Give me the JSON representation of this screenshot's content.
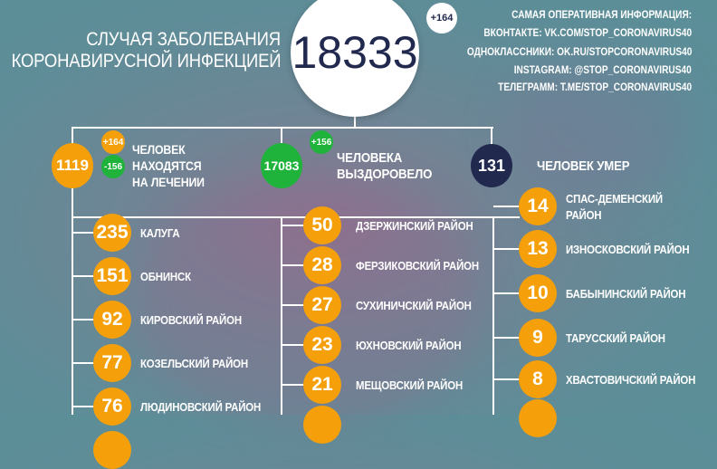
{
  "header": {
    "title_line1": "СЛУЧАЯ ЗАБОЛЕВАНИЯ",
    "title_line2": "КОРОНАВИРУСНОЙ ИНФЕКЦИЕЙ",
    "total": "18333",
    "total_delta": "+164"
  },
  "info": [
    "САМАЯ ОПЕРАТИВНАЯ ИНФОРМАЦИЯ:",
    "ВКОНТАКТЕ: VK.COM/STOP_CORONAVIRUS40",
    "ОДНОКЛАССНИКИ: OK.RU/STOPCORONAVIRUS40",
    "INSTAGRAM: @STOP_CORONAVIRUS40",
    "ТЕЛЕГРАММ: T.ME/STOP_CORONAVIRUS40"
  ],
  "stats": {
    "treatment": {
      "value": "1119",
      "plus": "+164",
      "minus": "-156",
      "label1": "ЧЕЛОВЕК",
      "label2": "НАХОДЯТСЯ",
      "label3": "НА ЛЕЧЕНИИ"
    },
    "recovered": {
      "value": "17083",
      "plus": "+156",
      "label1": "ЧЕЛОВЕКА",
      "label2": "ВЫЗДОРОВЕЛО"
    },
    "died": {
      "value": "131",
      "label": "ЧЕЛОВЕК УМЕР"
    }
  },
  "colors": {
    "active": "#f5a00a",
    "recovered": "#1fb33c",
    "died": "#22294f"
  },
  "regions": {
    "col1": [
      {
        "value": "235",
        "name": "КАЛУГА"
      },
      {
        "value": "151",
        "name": "ОБНИНСК"
      },
      {
        "value": "92",
        "name": "КИРОВСКИЙ РАЙОН"
      },
      {
        "value": "77",
        "name": "КОЗЕЛЬСКИЙ РАЙОН"
      },
      {
        "value": "76",
        "name": "ЛЮДИНОВСКИЙ РАЙОН"
      }
    ],
    "col2": [
      {
        "value": "50",
        "name": "ДЗЕРЖИНСКИЙ РАЙОН"
      },
      {
        "value": "28",
        "name": "ФЕРЗИКОВСКИЙ РАЙОН"
      },
      {
        "value": "27",
        "name": "СУХИНИЧСКИЙ РАЙОН"
      },
      {
        "value": "23",
        "name": "ЮХНОВСКИЙ РАЙОН"
      },
      {
        "value": "21",
        "name": "МЕЩОВСКИЙ РАЙОН"
      }
    ],
    "col3": [
      {
        "value": "14",
        "name": "СПАС-ДЕМЕНСКИЙ",
        "name2": "РАЙОН"
      },
      {
        "value": "13",
        "name": "ИЗНОСКОВСКИЙ РАЙОН"
      },
      {
        "value": "10",
        "name": "БАБЫНИНСКИЙ РАЙОН"
      },
      {
        "value": "9",
        "name": "ТАРУССКИЙ РАЙОН"
      },
      {
        "value": "8",
        "name": "ХВАСТОВИЧСКИЙ РАЙОН"
      }
    ]
  }
}
